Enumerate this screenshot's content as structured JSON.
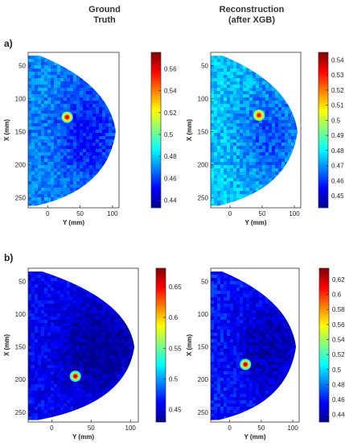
{
  "headers": {
    "left": "Ground\nTruth",
    "right": "Reconstruction\n(after XGB)"
  },
  "row_labels": [
    "a)",
    "b)"
  ],
  "colors": {
    "frame": "#333333",
    "text": "#222222",
    "colormap": [
      "#00008f",
      "#0000ff",
      "#0080ff",
      "#00ffff",
      "#80ff80",
      "#ffff00",
      "#ff8000",
      "#ff0000",
      "#800000"
    ]
  },
  "chart_data": [
    {
      "type": "heatmap",
      "id": "a-ground-truth",
      "xlabel": "Y (mm)",
      "ylabel": "X (mm)",
      "xticks": [
        0,
        50,
        100
      ],
      "yticks": [
        50,
        100,
        150,
        200,
        250
      ],
      "xlim": [
        -30,
        110
      ],
      "ylim": [
        30,
        265
      ],
      "colorbar": {
        "min": 0.433,
        "max": 0.575,
        "ticks": [
          0.44,
          0.46,
          0.48,
          0.5,
          0.52,
          0.54,
          0.56
        ]
      },
      "background_value": 0.47,
      "inclusion": {
        "x": 30,
        "y": 128,
        "value": 0.56
      }
    },
    {
      "type": "heatmap",
      "id": "a-reconstruction",
      "xlabel": "Y (mm)",
      "ylabel": "X (mm)",
      "xticks": [
        0,
        50,
        100
      ],
      "yticks": [
        50,
        100,
        150,
        200,
        250
      ],
      "xlim": [
        -30,
        110
      ],
      "ylim": [
        30,
        265
      ],
      "colorbar": {
        "min": 0.442,
        "max": 0.545,
        "ticks": [
          0.45,
          0.46,
          0.47,
          0.48,
          0.49,
          0.5,
          0.51,
          0.52,
          0.53,
          0.54
        ]
      },
      "background_value": 0.475,
      "inclusion": {
        "x": 45,
        "y": 125,
        "value": 0.53
      }
    },
    {
      "type": "heatmap",
      "id": "b-ground-truth",
      "xlabel": "Y (mm)",
      "ylabel": "X (mm)",
      "xticks": [
        0,
        50,
        100
      ],
      "yticks": [
        50,
        100,
        150,
        200,
        250
      ],
      "xlim": [
        -30,
        110
      ],
      "ylim": [
        30,
        265
      ],
      "colorbar": {
        "min": 0.43,
        "max": 0.68,
        "ticks": [
          0.45,
          0.5,
          0.55,
          0.6,
          0.65
        ]
      },
      "background_value": 0.46,
      "inclusion": {
        "x": 30,
        "y": 195,
        "value": 0.66
      }
    },
    {
      "type": "heatmap",
      "id": "b-reconstruction",
      "xlabel": "Y (mm)",
      "ylabel": "X (mm)",
      "xticks": [
        0,
        50,
        100
      ],
      "yticks": [
        50,
        100,
        150,
        200,
        250
      ],
      "xlim": [
        -30,
        110
      ],
      "ylim": [
        30,
        265
      ],
      "colorbar": {
        "min": 0.43,
        "max": 0.635,
        "ticks": [
          0.44,
          0.46,
          0.48,
          0.5,
          0.52,
          0.54,
          0.56,
          0.58,
          0.6,
          0.62
        ]
      },
      "background_value": 0.46,
      "inclusion": {
        "x": 25,
        "y": 177,
        "value": 0.62
      }
    }
  ]
}
